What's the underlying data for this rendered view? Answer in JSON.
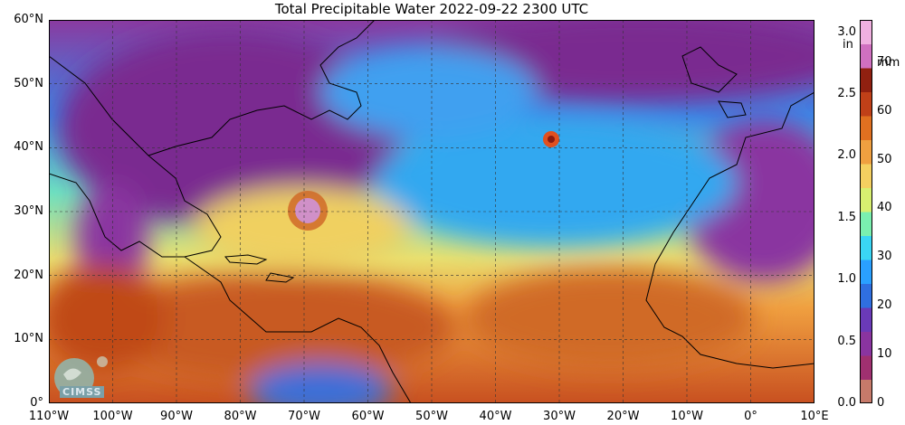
{
  "title": "Total Precipitable Water  2022-09-22 2300 UTC",
  "map": {
    "lat_labels": [
      "60°N",
      "50°N",
      "40°N",
      "30°N",
      "20°N",
      "10°N",
      "0°"
    ],
    "lon_labels": [
      "110°W",
      "100°W",
      "90°W",
      "80°W",
      "70°W",
      "60°W",
      "50°W",
      "40°W",
      "30°W",
      "20°W",
      "10°W",
      "0°",
      "10°E"
    ],
    "extent": {
      "lon_min": -110,
      "lon_max": 10,
      "lat_min": 0,
      "lat_max": 60
    },
    "gridlines": true
  },
  "colorbar": {
    "left_unit": "in",
    "right_unit": "mm",
    "in_ticks": [
      "3.0",
      "2.5",
      "2.0",
      "1.5",
      "1.0",
      "0.5",
      "0.0"
    ],
    "mm_ticks": [
      "70",
      "60",
      "50",
      "40",
      "30",
      "20",
      "10",
      "0"
    ],
    "colors": [
      "#c77a6a",
      "#a03070",
      "#8a34a0",
      "#6a3ab8",
      "#2f6fe0",
      "#2aa0ff",
      "#3ad6f5",
      "#7af0b0",
      "#d8f070",
      "#f5d060",
      "#f0a040",
      "#e07020",
      "#c04018",
      "#902010",
      "#d070c0",
      "#f0b0e0"
    ]
  },
  "logo": {
    "text": "CIMSS"
  }
}
